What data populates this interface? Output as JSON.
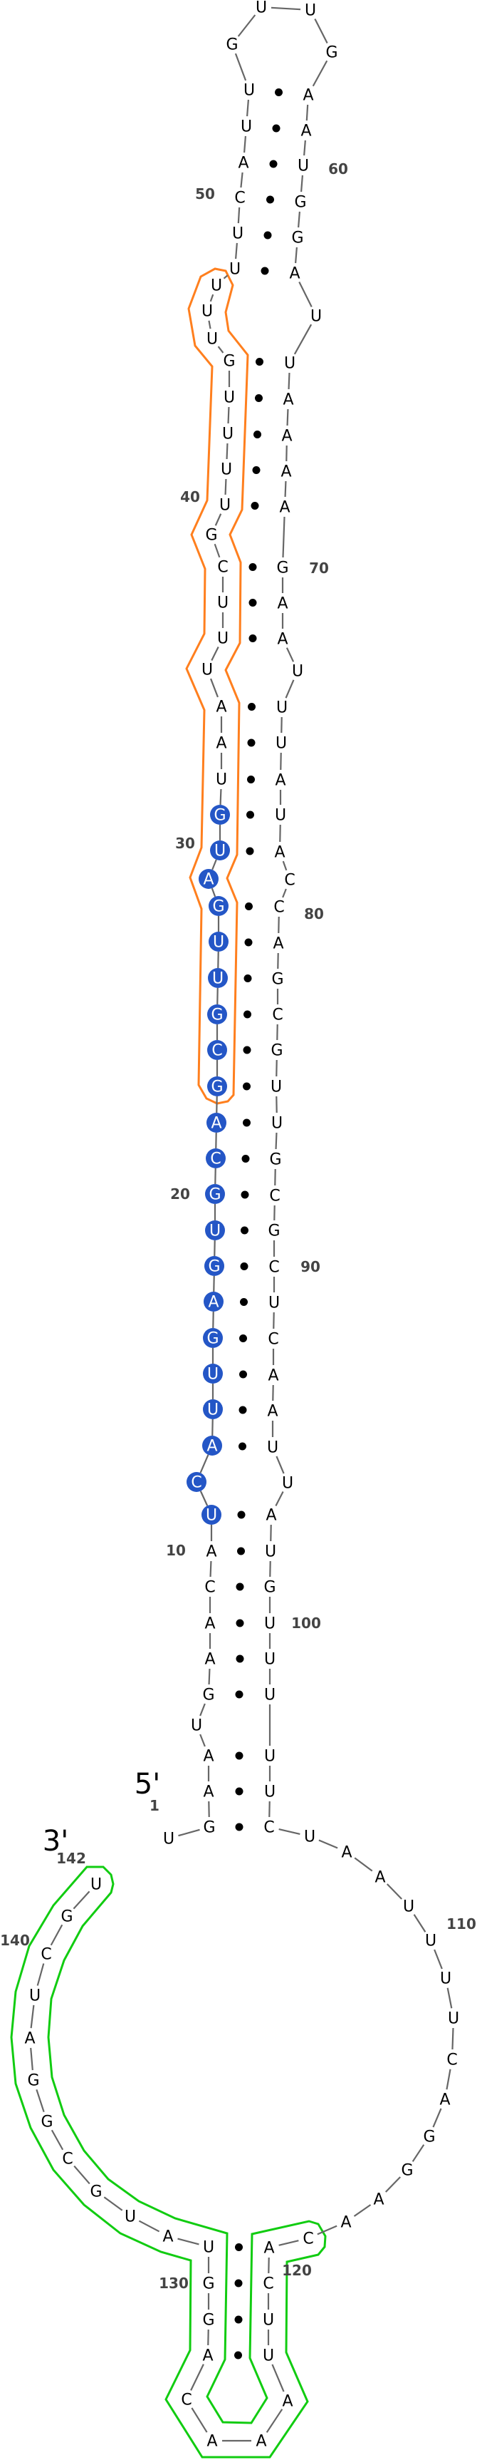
{
  "sequence": "UGAAUGAACAUCAUUGAGUGCAGCGUUGAUGUAAUUUCGUUUUGUUUUUCAUUGUUGAAUGGAUUAAAAGAAUUUAUACCAGCGUUGCGCUCAAUUAUGUUUUUCUAAUUUUCAGGAACACUUAAACAGGUAUGCGGAUCGU",
  "base_pairs": [
    [
      2,
      105
    ],
    [
      3,
      104
    ],
    [
      4,
      103
    ],
    [
      6,
      102
    ],
    [
      7,
      101
    ],
    [
      8,
      100
    ],
    [
      9,
      99
    ],
    [
      10,
      98
    ],
    [
      11,
      97
    ],
    [
      13,
      95
    ],
    [
      14,
      94
    ],
    [
      15,
      93
    ],
    [
      16,
      92
    ],
    [
      17,
      91
    ],
    [
      18,
      90
    ],
    [
      19,
      89
    ],
    [
      20,
      88
    ],
    [
      21,
      87
    ],
    [
      22,
      86
    ],
    [
      23,
      85
    ],
    [
      24,
      84
    ],
    [
      25,
      83
    ],
    [
      26,
      82
    ],
    [
      27,
      81
    ],
    [
      28,
      80
    ],
    [
      30,
      78
    ],
    [
      31,
      77
    ],
    [
      32,
      76
    ],
    [
      33,
      75
    ],
    [
      34,
      74
    ],
    [
      36,
      72
    ],
    [
      37,
      71
    ],
    [
      38,
      70
    ],
    [
      40,
      69
    ],
    [
      41,
      68
    ],
    [
      42,
      67
    ],
    [
      43,
      66
    ],
    [
      44,
      65
    ],
    [
      48,
      63
    ],
    [
      49,
      62
    ],
    [
      50,
      61
    ],
    [
      51,
      60
    ],
    [
      52,
      59
    ],
    [
      53,
      58
    ],
    [
      120,
      131
    ],
    [
      121,
      130
    ],
    [
      122,
      129
    ],
    [
      123,
      128
    ]
  ],
  "numbering": [
    "1",
    "10",
    "20",
    "30",
    "40",
    "50",
    "60",
    "70",
    "80",
    "90",
    "100",
    "110",
    "120",
    "130",
    "140",
    "142"
  ],
  "end_labels": {
    "five_prime": "5'",
    "three_prime": "3'"
  },
  "highlights": {
    "filled_range": [
      11,
      31
    ],
    "filled_color": "#2456c6",
    "orange_outline_range": [
      23,
      47
    ],
    "orange_color": "#ff7f1e",
    "green_outline_range": [
      119,
      142
    ],
    "green_color": "#11cc11"
  },
  "colors": {
    "backbone": "#666666",
    "pair_dot": "#000000",
    "number": "#444444"
  }
}
